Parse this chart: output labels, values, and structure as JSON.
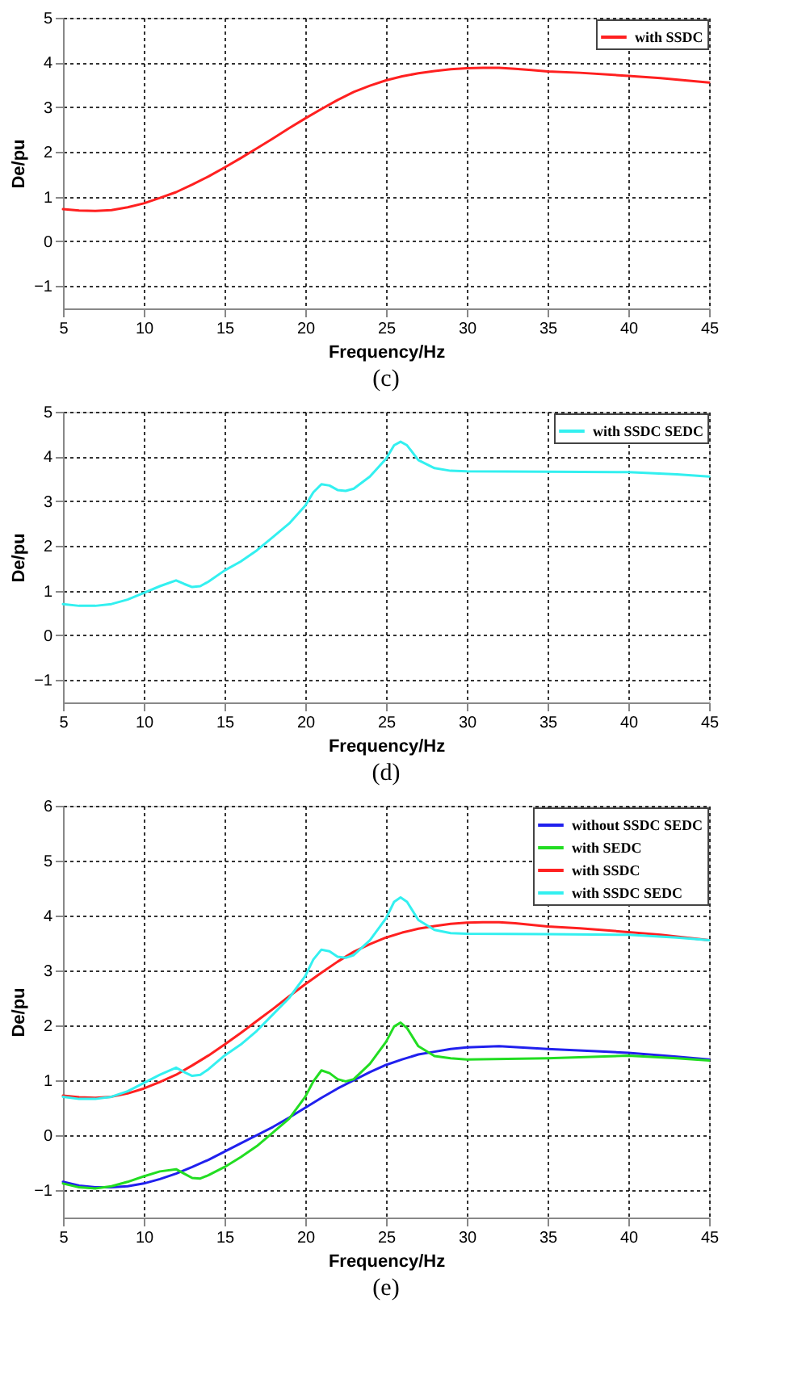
{
  "chart_data": [
    {
      "type": "line",
      "title": "(c)",
      "xlabel": "Frequency/Hz",
      "ylabel": "De/pu",
      "xlim": [
        5,
        45
      ],
      "xticks": [
        5,
        10,
        15,
        20,
        25,
        30,
        35,
        40,
        45
      ],
      "ylim": [
        -1.5,
        5
      ],
      "yticks": [
        -1,
        0,
        1,
        2,
        3,
        4,
        5
      ],
      "grid": true,
      "legend": "top right",
      "line_style": "solid",
      "series": [
        {
          "name": "with SSDC",
          "color": "#ff2020",
          "x": [
            5,
            6,
            7,
            8,
            9,
            10,
            11,
            12,
            13,
            14,
            15,
            16,
            17,
            18,
            19,
            20,
            21,
            22,
            23,
            24,
            25,
            26,
            27,
            28,
            29,
            30,
            31,
            32,
            33,
            34,
            35,
            37,
            40,
            42,
            45
          ],
          "values": [
            0.72,
            0.69,
            0.68,
            0.7,
            0.76,
            0.85,
            0.97,
            1.1,
            1.27,
            1.45,
            1.65,
            1.86,
            2.08,
            2.3,
            2.53,
            2.75,
            2.96,
            3.16,
            3.34,
            3.48,
            3.6,
            3.69,
            3.76,
            3.81,
            3.85,
            3.87,
            3.88,
            3.88,
            3.86,
            3.83,
            3.8,
            3.77,
            3.7,
            3.65,
            3.55
          ]
        }
      ]
    },
    {
      "type": "line",
      "title": "(d)",
      "xlabel": "Frequency/Hz",
      "ylabel": "De/pu",
      "xlim": [
        5,
        45
      ],
      "xticks": [
        5,
        10,
        15,
        20,
        25,
        30,
        35,
        40,
        45
      ],
      "ylim": [
        -1.5,
        5
      ],
      "yticks": [
        -1,
        0,
        1,
        2,
        3,
        4,
        5
      ],
      "grid": true,
      "legend": "top right",
      "line_style": "solid",
      "series": [
        {
          "name": "with SSDC SEDC",
          "color": "#33f0f0",
          "x": [
            5,
            6,
            7,
            8,
            9,
            10,
            11,
            12,
            12.5,
            13,
            13.5,
            14,
            15,
            16,
            17,
            18,
            19,
            20,
            20.5,
            21,
            21.5,
            22,
            22.5,
            23,
            24,
            25,
            25.5,
            25.9,
            26.3,
            27,
            28,
            29,
            30,
            35,
            40,
            43,
            45
          ],
          "values": [
            0.7,
            0.66,
            0.66,
            0.7,
            0.8,
            0.95,
            1.1,
            1.23,
            1.15,
            1.08,
            1.1,
            1.2,
            1.45,
            1.65,
            1.9,
            2.2,
            2.5,
            2.9,
            3.2,
            3.38,
            3.35,
            3.25,
            3.23,
            3.28,
            3.55,
            3.95,
            4.25,
            4.33,
            4.25,
            3.92,
            3.74,
            3.68,
            3.67,
            3.66,
            3.65,
            3.6,
            3.55
          ]
        }
      ]
    },
    {
      "type": "line",
      "title": "(e)",
      "xlabel": "Frequency/Hz",
      "ylabel": "De/pu",
      "xlim": [
        5,
        45
      ],
      "xticks": [
        5,
        10,
        15,
        20,
        25,
        30,
        35,
        40,
        45
      ],
      "ylim": [
        -1.5,
        6
      ],
      "yticks": [
        -1,
        0,
        1,
        2,
        3,
        4,
        5,
        6
      ],
      "grid": true,
      "legend": "top right",
      "line_style": "solid",
      "series": [
        {
          "name": "without SSDC SEDC",
          "color": "#2020ee",
          "x": [
            5,
            6,
            7,
            8,
            9,
            10,
            11,
            12,
            13,
            14,
            15,
            16,
            17,
            18,
            19,
            20,
            21,
            22,
            23,
            24,
            25,
            26,
            27,
            28,
            29,
            30,
            32,
            35,
            38,
            40,
            43,
            45
          ],
          "values": [
            -0.85,
            -0.92,
            -0.95,
            -0.95,
            -0.93,
            -0.88,
            -0.8,
            -0.7,
            -0.58,
            -0.45,
            -0.3,
            -0.15,
            0.0,
            0.15,
            0.32,
            0.5,
            0.68,
            0.85,
            1.0,
            1.15,
            1.28,
            1.38,
            1.47,
            1.52,
            1.57,
            1.6,
            1.62,
            1.57,
            1.53,
            1.5,
            1.43,
            1.38
          ]
        },
        {
          "name": "with SEDC",
          "color": "#22dd22",
          "x": [
            5,
            6,
            7,
            8,
            9,
            10,
            11,
            12,
            12.5,
            13,
            13.5,
            14,
            15,
            16,
            17,
            18,
            19,
            20,
            20.5,
            21,
            21.5,
            22,
            22.5,
            23,
            24,
            25,
            25.5,
            25.9,
            26.3,
            27,
            28,
            29,
            30,
            35,
            40,
            43,
            45
          ],
          "values": [
            -0.88,
            -0.95,
            -0.97,
            -0.93,
            -0.85,
            -0.75,
            -0.66,
            -0.62,
            -0.7,
            -0.78,
            -0.79,
            -0.73,
            -0.58,
            -0.4,
            -0.2,
            0.05,
            0.3,
            0.7,
            0.98,
            1.18,
            1.13,
            1.02,
            0.98,
            1.02,
            1.3,
            1.7,
            1.98,
            2.05,
            1.95,
            1.62,
            1.44,
            1.4,
            1.38,
            1.4,
            1.45,
            1.4,
            1.36
          ]
        },
        {
          "name": "with SSDC",
          "color": "#ff2020",
          "x": [
            5,
            6,
            7,
            8,
            9,
            10,
            11,
            12,
            13,
            14,
            15,
            16,
            17,
            18,
            19,
            20,
            21,
            22,
            23,
            24,
            25,
            26,
            27,
            28,
            29,
            30,
            31,
            32,
            33,
            34,
            35,
            37,
            40,
            42,
            45
          ],
          "values": [
            0.72,
            0.69,
            0.68,
            0.7,
            0.76,
            0.85,
            0.97,
            1.1,
            1.27,
            1.45,
            1.65,
            1.86,
            2.08,
            2.3,
            2.53,
            2.75,
            2.96,
            3.16,
            3.34,
            3.48,
            3.6,
            3.69,
            3.76,
            3.81,
            3.85,
            3.87,
            3.88,
            3.88,
            3.86,
            3.83,
            3.8,
            3.77,
            3.7,
            3.65,
            3.55
          ]
        },
        {
          "name": "with SSDC SEDC",
          "color": "#33f0f0",
          "x": [
            5,
            6,
            7,
            8,
            9,
            10,
            11,
            12,
            12.5,
            13,
            13.5,
            14,
            15,
            16,
            17,
            18,
            19,
            20,
            20.5,
            21,
            21.5,
            22,
            22.5,
            23,
            24,
            25,
            25.5,
            25.9,
            26.3,
            27,
            28,
            29,
            30,
            35,
            40,
            43,
            45
          ],
          "values": [
            0.7,
            0.66,
            0.66,
            0.7,
            0.8,
            0.95,
            1.1,
            1.23,
            1.15,
            1.08,
            1.1,
            1.2,
            1.45,
            1.65,
            1.9,
            2.2,
            2.5,
            2.9,
            3.2,
            3.38,
            3.35,
            3.25,
            3.23,
            3.28,
            3.55,
            3.95,
            4.25,
            4.33,
            4.25,
            3.92,
            3.74,
            3.68,
            3.67,
            3.66,
            3.65,
            3.6,
            3.55
          ]
        }
      ]
    }
  ]
}
